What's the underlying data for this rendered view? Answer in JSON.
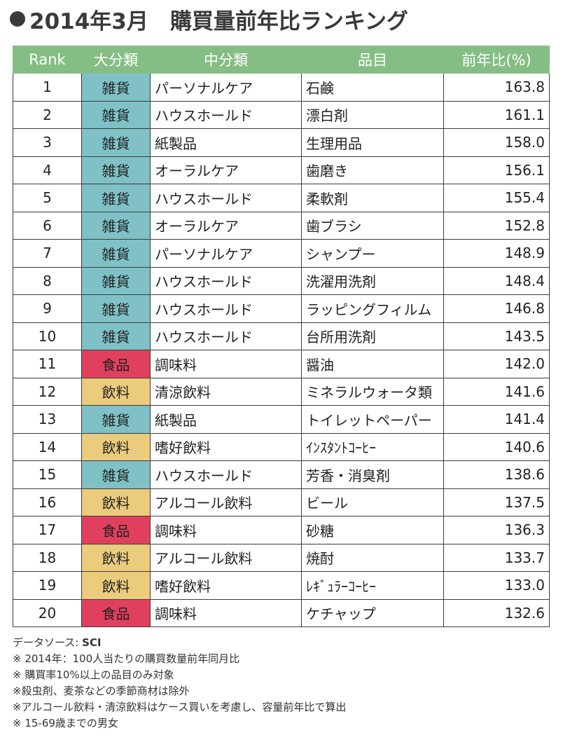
{
  "title": "2014年3月　購買量前年比ランキング",
  "colors": {
    "header_bg": "#85be84",
    "雑貨": "#7fc1c6",
    "食品": "#e0405e",
    "飲料": "#ebcb7c"
  },
  "table": {
    "headers": [
      "Rank",
      "大分類",
      "中分類",
      "品目",
      "前年比(%)"
    ],
    "rows": [
      {
        "rank": "1",
        "major": "雑貨",
        "mid": "パーソナルケア",
        "item": "石鹸",
        "ratio": "163.8"
      },
      {
        "rank": "2",
        "major": "雑貨",
        "mid": "ハウスホールド",
        "item": "漂白剤",
        "ratio": "161.1"
      },
      {
        "rank": "3",
        "major": "雑貨",
        "mid": "紙製品",
        "item": "生理用品",
        "ratio": "158.0"
      },
      {
        "rank": "4",
        "major": "雑貨",
        "mid": "オーラルケア",
        "item": "歯磨き",
        "ratio": "156.1"
      },
      {
        "rank": "5",
        "major": "雑貨",
        "mid": "ハウスホールド",
        "item": "柔軟剤",
        "ratio": "155.4"
      },
      {
        "rank": "6",
        "major": "雑貨",
        "mid": "オーラルケア",
        "item": "歯ブラシ",
        "ratio": "152.8"
      },
      {
        "rank": "7",
        "major": "雑貨",
        "mid": "パーソナルケア",
        "item": "シャンプー",
        "ratio": "148.9"
      },
      {
        "rank": "8",
        "major": "雑貨",
        "mid": "ハウスホールド",
        "item": "洗濯用洗剤",
        "ratio": "148.4"
      },
      {
        "rank": "9",
        "major": "雑貨",
        "mid": "ハウスホールド",
        "item": "ラッピングフィルム",
        "ratio": "146.8"
      },
      {
        "rank": "10",
        "major": "雑貨",
        "mid": "ハウスホールド",
        "item": "台所用洗剤",
        "ratio": "143.5"
      },
      {
        "rank": "11",
        "major": "食品",
        "mid": "調味料",
        "item": "醤油",
        "ratio": "142.0"
      },
      {
        "rank": "12",
        "major": "飲料",
        "mid": "清涼飲料",
        "item": "ミネラルウォータ類",
        "ratio": "141.6"
      },
      {
        "rank": "13",
        "major": "雑貨",
        "mid": "紙製品",
        "item": "トイレットペーパー",
        "ratio": "141.4"
      },
      {
        "rank": "14",
        "major": "飲料",
        "mid": "嗜好飲料",
        "item": "ｲﾝｽﾀﾝﾄｺｰﾋｰ",
        "ratio": "140.6"
      },
      {
        "rank": "15",
        "major": "雑貨",
        "mid": "ハウスホールド",
        "item": "芳香・消臭剤",
        "ratio": "138.6"
      },
      {
        "rank": "16",
        "major": "飲料",
        "mid": "アルコール飲料",
        "item": "ビール",
        "ratio": "137.5"
      },
      {
        "rank": "17",
        "major": "食品",
        "mid": "調味料",
        "item": "砂糖",
        "ratio": "136.3"
      },
      {
        "rank": "18",
        "major": "飲料",
        "mid": "アルコール飲料",
        "item": "焼酎",
        "ratio": "133.7"
      },
      {
        "rank": "19",
        "major": "飲料",
        "mid": "嗜好飲料",
        "item": "ﾚｷﾞｭﾗｰｺｰﾋｰ",
        "ratio": "133.0"
      },
      {
        "rank": "20",
        "major": "食品",
        "mid": "調味料",
        "item": "ケチャップ",
        "ratio": "132.6"
      }
    ]
  },
  "notes": {
    "source_label": "データソース: ",
    "source_name": "SCI",
    "lines": [
      "※ 2014年：100人当たりの購買数量前年同月比",
      "※ 購買率10%以上の品目のみ対象",
      "※殺虫剤、麦茶などの季節商材は除外",
      "※アルコール飲料・清涼飲料はケース買いを考慮し、容量前年比で算出",
      "※ 15-69歳までの男女"
    ]
  }
}
